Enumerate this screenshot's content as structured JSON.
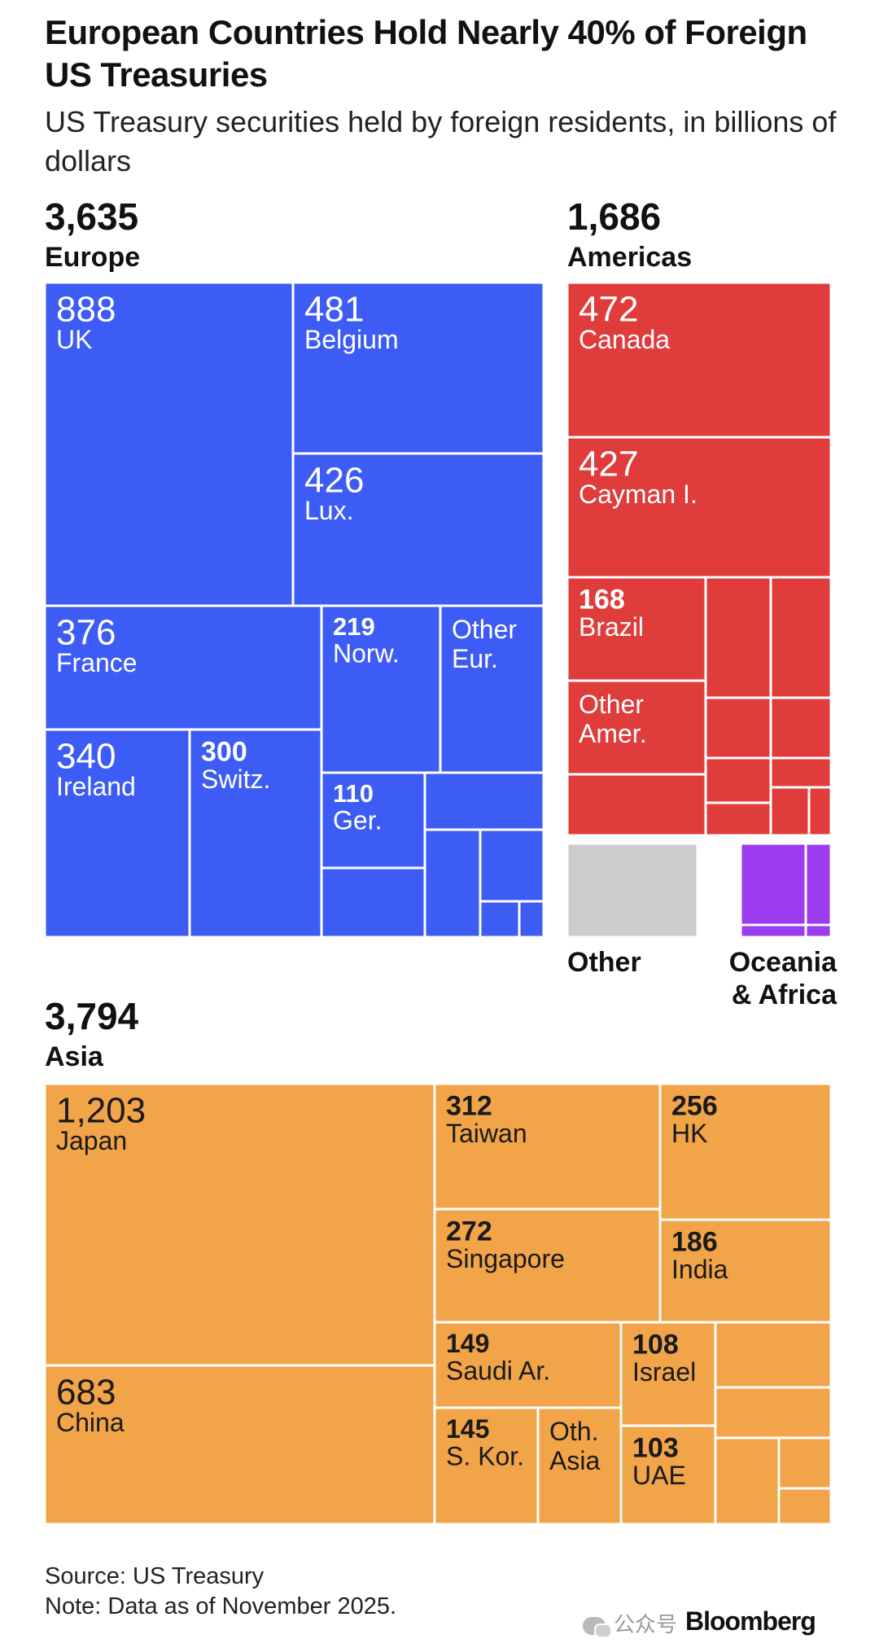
{
  "header": {
    "title": "European Countries Hold Nearly 40% of Foreign US Treasuries",
    "subtitle": "US Treasury securities held by foreign residents, in billions of dollars"
  },
  "regions": {
    "europe": {
      "total": "3,635",
      "name": "Europe"
    },
    "americas": {
      "total": "1,686",
      "name": "Americas"
    },
    "asia": {
      "total": "3,794",
      "name": "Asia"
    },
    "other": {
      "name": "Other"
    },
    "oceania_africa": {
      "name": "Oceania & Africa"
    }
  },
  "colors": {
    "europe": "#3d5cf5",
    "americas": "#e03c3c",
    "asia": "#f2a448",
    "other": "#cccccc",
    "oceania_africa": "#9b3cf0"
  },
  "chart_data": {
    "type": "treemap",
    "title": "European Countries Hold Nearly 40% of Foreign US Treasuries",
    "subtitle": "US Treasury securities held by foreign residents, in billions of dollars",
    "groups": [
      {
        "name": "Europe",
        "total": 3635,
        "items": [
          {
            "label": "UK",
            "value": 888
          },
          {
            "label": "Belgium",
            "value": 481
          },
          {
            "label": "Lux.",
            "value": 426
          },
          {
            "label": "France",
            "value": 376
          },
          {
            "label": "Ireland",
            "value": 340
          },
          {
            "label": "Switz.",
            "value": 300
          },
          {
            "label": "Norw.",
            "value": 219
          },
          {
            "label": "Other Eur.",
            "value": null
          },
          {
            "label": "Ger.",
            "value": 110
          }
        ]
      },
      {
        "name": "Americas",
        "total": 1686,
        "items": [
          {
            "label": "Canada",
            "value": 472
          },
          {
            "label": "Cayman I.",
            "value": 427
          },
          {
            "label": "Brazil",
            "value": 168
          },
          {
            "label": "Other Amer.",
            "value": null
          }
        ]
      },
      {
        "name": "Other",
        "total": null,
        "items": []
      },
      {
        "name": "Oceania & Africa",
        "total": null,
        "items": []
      },
      {
        "name": "Asia",
        "total": 3794,
        "items": [
          {
            "label": "Japan",
            "value": 1203
          },
          {
            "label": "China",
            "value": 683
          },
          {
            "label": "Taiwan",
            "value": 312
          },
          {
            "label": "Singapore",
            "value": 272
          },
          {
            "label": "HK",
            "value": 256
          },
          {
            "label": "India",
            "value": 186
          },
          {
            "label": "Saudi Ar.",
            "value": 149
          },
          {
            "label": "S. Kor.",
            "value": 145
          },
          {
            "label": "Oth. Asia",
            "value": null
          },
          {
            "label": "Israel",
            "value": 108
          },
          {
            "label": "UAE",
            "value": 103
          }
        ]
      }
    ]
  },
  "footer": {
    "source": "Source: US Treasury",
    "note": "Note: Data as of November 2025.",
    "logo": "Bloomberg",
    "watermark": "公众号"
  }
}
